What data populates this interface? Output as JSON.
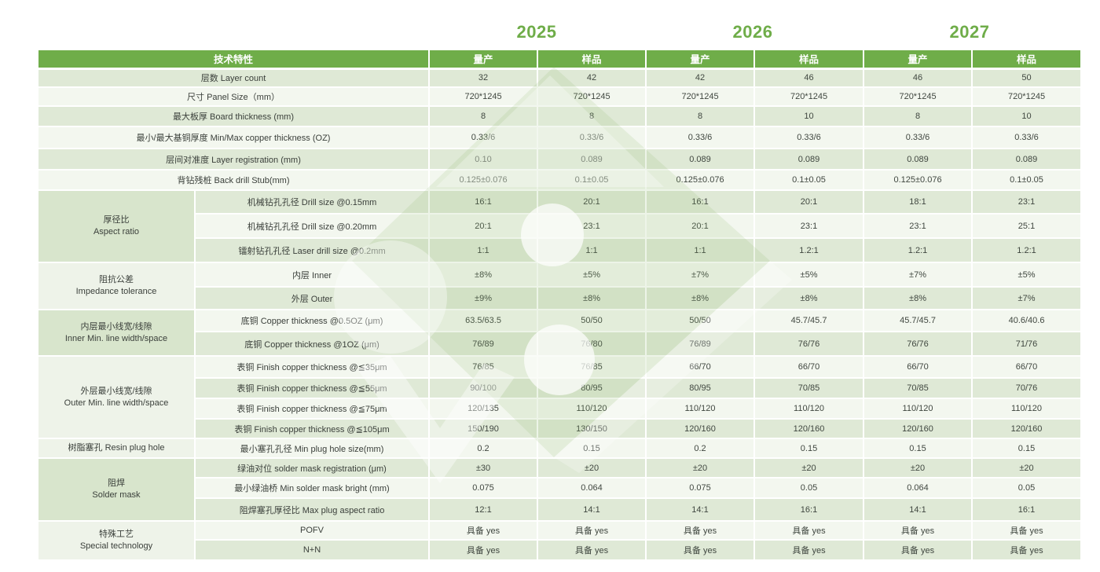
{
  "years": [
    "2025",
    "2026",
    "2027"
  ],
  "colors": {
    "header_green": "#6fad49",
    "year_green": "#6fad49",
    "band_green": "#dfe9d6",
    "band_light": "#f3f7ef",
    "group_green": "#d8e5cc",
    "group_light": "#eef3e9",
    "header_text": "#ffffff",
    "body_text": "#3f463f"
  },
  "header": {
    "feature_label": "技术特性",
    "col_labels": [
      "量产",
      "样品",
      "量产",
      "样品",
      "量产",
      "样品"
    ]
  },
  "table": {
    "rows": [
      {
        "full": true,
        "label": "层数 Layer count",
        "values": [
          "32",
          "42",
          "42",
          "46",
          "46",
          "50"
        ]
      },
      {
        "full": true,
        "label": "尺寸 Panel Size（mm）",
        "values": [
          "720*1245",
          "720*1245",
          "720*1245",
          "720*1245",
          "720*1245",
          "720*1245"
        ]
      },
      {
        "full": true,
        "label": "最大板厚 Board thickness (mm)",
        "values": [
          "8",
          "8",
          "8",
          "10",
          "8",
          "10"
        ]
      },
      {
        "full": true,
        "label": "最小/最大基铜厚度 Min/Max copper thickness (OZ)",
        "values": [
          "0.33/6",
          "0.33/6",
          "0.33/6",
          "0.33/6",
          "0.33/6",
          "0.33/6"
        ]
      },
      {
        "full": true,
        "label": "层间对准度 Layer registration (mm)",
        "values": [
          "0.10",
          "0.089",
          "0.089",
          "0.089",
          "0.089",
          "0.089"
        ]
      },
      {
        "full": true,
        "label": "背钻残桩 Back drill Stub(mm)",
        "values": [
          "0.125±0.076",
          "0.1±0.05",
          "0.125±0.076",
          "0.1±0.05",
          "0.125±0.076",
          "0.1±0.05"
        ]
      },
      {
        "group": {
          "zh": "厚径比",
          "en": "Aspect ratio",
          "rowspan": 3,
          "tone": "green"
        },
        "label": "机械钻孔孔径 Drill size @0.15mm",
        "values": [
          "16:1",
          "20:1",
          "16:1",
          "20:1",
          "18:1",
          "23:1"
        ]
      },
      {
        "label": "机械钻孔孔径 Drill size @0.20mm",
        "values": [
          "20:1",
          "23:1",
          "20:1",
          "23:1",
          "23:1",
          "25:1"
        ]
      },
      {
        "label": "镭射钻孔孔径 Laser drill size @0.2mm",
        "values": [
          "1:1",
          "1:1",
          "1:1",
          "1.2:1",
          "1.2:1",
          "1.2:1"
        ]
      },
      {
        "group": {
          "zh": "阻抗公差",
          "en": "Impedance tolerance",
          "rowspan": 2,
          "tone": "light"
        },
        "label": "内层 Inner",
        "values": [
          "±8%",
          "±5%",
          "±7%",
          "±5%",
          "±7%",
          "±5%"
        ]
      },
      {
        "label": "外层 Outer",
        "values": [
          "±9%",
          "±8%",
          "±8%",
          "±8%",
          "±8%",
          "±7%"
        ]
      },
      {
        "group": {
          "zh": "内层最小线宽/线隙",
          "en": "Inner Min. line width/space",
          "rowspan": 2,
          "tone": "green"
        },
        "label": "底铜 Copper thickness @0.5OZ (μm)",
        "values": [
          "63.5/63.5",
          "50/50",
          "50/50",
          "45.7/45.7",
          "45.7/45.7",
          "40.6/40.6"
        ]
      },
      {
        "label": "底铜 Copper thickness @1OZ (μm)",
        "values": [
          "76/89",
          "76/80",
          "76/89",
          "76/76",
          "76/76",
          "71/76"
        ]
      },
      {
        "group": {
          "zh": "外层最小线宽/线隙",
          "en": "Outer Min. line width/space",
          "rowspan": 4,
          "tone": "light"
        },
        "label": "表铜 Finish copper thickness @≦35μm",
        "values": [
          "76/85",
          "76/85",
          "66/70",
          "66/70",
          "66/70",
          "66/70"
        ]
      },
      {
        "label": "表铜 Finish copper thickness @≦55μm",
        "values": [
          "90/100",
          "80/95",
          "80/95",
          "70/85",
          "70/85",
          "70/76"
        ]
      },
      {
        "label": "表铜 Finish copper thickness @≦75μm",
        "values": [
          "120/135",
          "110/120",
          "110/120",
          "110/120",
          "110/120",
          "110/120"
        ]
      },
      {
        "label": "表铜 Finish copper thickness @≦105μm",
        "values": [
          "150/190",
          "130/150",
          "120/160",
          "120/160",
          "120/160",
          "120/160"
        ]
      },
      {
        "group": {
          "zh": "树脂塞孔 Resin plug hole",
          "en": "",
          "rowspan": 1,
          "tone": "light"
        },
        "label": "最小塞孔孔径 Min plug hole size(mm)",
        "values": [
          "0.2",
          "0.15",
          "0.2",
          "0.15",
          "0.15",
          "0.15"
        ]
      },
      {
        "group": {
          "zh": "阻焊",
          "en": "Solder mask",
          "rowspan": 3,
          "tone": "green"
        },
        "label": "绿油对位 solder mask registration (μm)",
        "values": [
          "±30",
          "±20",
          "±20",
          "±20",
          "±20",
          "±20"
        ]
      },
      {
        "label": "最小绿油桥 Min solder mask bright (mm)",
        "values": [
          "0.075",
          "0.064",
          "0.075",
          "0.05",
          "0.064",
          "0.05"
        ]
      },
      {
        "label": "阻焊塞孔厚径比 Max plug aspect ratio",
        "values": [
          "12:1",
          "14:1",
          "14:1",
          "16:1",
          "14:1",
          "16:1"
        ]
      },
      {
        "group": {
          "zh": "特殊工艺",
          "en": "Special technology",
          "rowspan": 2,
          "tone": "light"
        },
        "label": "POFV",
        "values": [
          "具备 yes",
          "具备 yes",
          "具备 yes",
          "具备 yes",
          "具备 yes",
          "具备 yes"
        ]
      },
      {
        "label": "N+N",
        "values": [
          "具备 yes",
          "具备 yes",
          "具备 yes",
          "具备 yes",
          "具备 yes",
          "具备 yes"
        ]
      }
    ]
  }
}
